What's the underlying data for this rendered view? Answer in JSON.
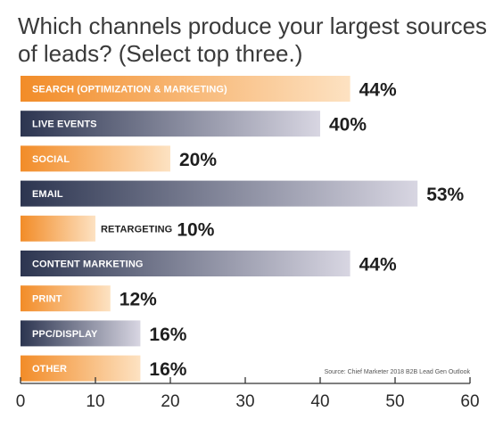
{
  "chart_data": {
    "type": "bar",
    "orientation": "horizontal",
    "title": "Which channels produce your largest sources of leads? (Select top three.)",
    "categories": [
      "SEARCH (OPTIMIZATION & MARKETING)",
      "LIVE EVENTS",
      "SOCIAL",
      "EMAIL",
      "RETARGETING",
      "CONTENT MARKETING",
      "PRINT",
      "PPC/DISPLAY",
      "OTHER"
    ],
    "values": [
      44,
      40,
      20,
      53,
      10,
      44,
      12,
      16,
      16
    ],
    "value_labels": [
      "44%",
      "40%",
      "20%",
      "53%",
      "10%",
      "44%",
      "12%",
      "16%",
      "16%"
    ],
    "bar_styles": [
      "orange",
      "navy",
      "orange",
      "navy",
      "orange",
      "navy",
      "orange",
      "navy",
      "orange"
    ],
    "xlim": [
      0,
      60
    ],
    "xticks": [
      0,
      10,
      20,
      30,
      40,
      50,
      60
    ],
    "xlabel": "",
    "ylabel": "",
    "grid": false,
    "colors": {
      "orange": [
        "#f28c28",
        "#fde2c2"
      ],
      "navy": [
        "#2c3550",
        "#d8d6e2"
      ],
      "axis": "#333333"
    },
    "source": "Source: Chief Marketer 2018 B2B Lead Gen Outlook"
  }
}
